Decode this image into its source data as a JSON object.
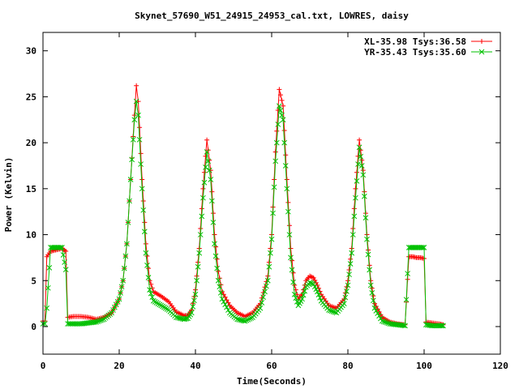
{
  "chart_data": {
    "type": "line",
    "title": "Skynet_57690_W51_24915_24953_cal.txt, LOWRES, daisy",
    "xlabel": "Time(Seconds)",
    "ylabel": "Power (Kelvin)",
    "xlim": [
      0,
      120
    ],
    "ylim": [
      -3,
      32
    ],
    "xticks": [
      0,
      20,
      40,
      60,
      80,
      100,
      120
    ],
    "yticks": [
      0,
      5,
      10,
      15,
      20,
      25,
      30
    ],
    "grid": false,
    "legend_position": "top-right",
    "series": [
      {
        "name": "XL-35.98 Tsys:36.58",
        "color": "#ff0000",
        "marker": "plus",
        "points": [
          [
            0,
            0.6
          ],
          [
            0.5,
            0.6
          ],
          [
            1,
            7.6
          ],
          [
            2,
            8.2
          ],
          [
            3,
            8.3
          ],
          [
            4,
            8.4
          ],
          [
            5,
            8.5
          ],
          [
            6,
            8.2
          ],
          [
            6.5,
            1.0
          ],
          [
            8,
            1.1
          ],
          [
            10,
            1.1
          ],
          [
            12,
            1.0
          ],
          [
            14,
            0.8
          ],
          [
            16,
            1.0
          ],
          [
            18,
            1.5
          ],
          [
            20,
            3.0
          ],
          [
            21,
            5.0
          ],
          [
            22,
            9.0
          ],
          [
            23,
            16.0
          ],
          [
            24,
            23.0
          ],
          [
            24.5,
            26.2
          ],
          [
            25,
            24.5
          ],
          [
            26,
            16.0
          ],
          [
            27,
            9.0
          ],
          [
            28,
            5.0
          ],
          [
            29,
            3.8
          ],
          [
            31,
            3.3
          ],
          [
            33,
            2.7
          ],
          [
            35,
            1.6
          ],
          [
            37,
            1.2
          ],
          [
            38,
            1.2
          ],
          [
            39,
            1.8
          ],
          [
            40,
            4.0
          ],
          [
            41,
            8.5
          ],
          [
            42,
            15.0
          ],
          [
            43,
            20.3
          ],
          [
            44,
            17.0
          ],
          [
            45,
            10.0
          ],
          [
            46,
            6.0
          ],
          [
            47,
            3.8
          ],
          [
            49,
            2.3
          ],
          [
            51,
            1.5
          ],
          [
            53,
            1.1
          ],
          [
            55,
            1.5
          ],
          [
            57,
            2.5
          ],
          [
            59,
            5.5
          ],
          [
            60,
            10.0
          ],
          [
            61,
            19.0
          ],
          [
            62,
            25.8
          ],
          [
            63,
            24.0
          ],
          [
            64,
            16.0
          ],
          [
            65,
            8.5
          ],
          [
            66,
            4.5
          ],
          [
            67,
            3.0
          ],
          [
            68,
            3.5
          ],
          [
            69,
            5.0
          ],
          [
            70,
            5.5
          ],
          [
            71,
            5.3
          ],
          [
            72,
            4.5
          ],
          [
            73,
            3.5
          ],
          [
            75,
            2.3
          ],
          [
            77,
            2.0
          ],
          [
            79,
            3.0
          ],
          [
            80,
            5.0
          ],
          [
            81,
            8.5
          ],
          [
            82,
            15.0
          ],
          [
            83,
            20.3
          ],
          [
            84,
            17.0
          ],
          [
            85,
            10.0
          ],
          [
            86,
            5.0
          ],
          [
            87,
            2.5
          ],
          [
            89,
            1.0
          ],
          [
            91,
            0.5
          ],
          [
            93,
            0.3
          ],
          [
            95,
            0.2
          ],
          [
            96,
            7.6
          ],
          [
            97,
            7.6
          ],
          [
            98,
            7.5
          ],
          [
            99,
            7.5
          ],
          [
            100,
            7.4
          ],
          [
            100.5,
            0.5
          ],
          [
            102,
            0.4
          ],
          [
            104,
            0.3
          ],
          [
            105,
            0.2
          ]
        ]
      },
      {
        "name": "YR-35.43 Tsys:35.60",
        "color": "#00c000",
        "marker": "cross",
        "points": [
          [
            0,
            0.3
          ],
          [
            0.5,
            0.3
          ],
          [
            1,
            2.0
          ],
          [
            2,
            8.6
          ],
          [
            3,
            8.6
          ],
          [
            4,
            8.6
          ],
          [
            5,
            8.6
          ],
          [
            6,
            6.2
          ],
          [
            6.5,
            0.3
          ],
          [
            8,
            0.3
          ],
          [
            10,
            0.3
          ],
          [
            12,
            0.4
          ],
          [
            14,
            0.5
          ],
          [
            16,
            0.8
          ],
          [
            18,
            1.5
          ],
          [
            20,
            3.0
          ],
          [
            21,
            5.0
          ],
          [
            22,
            9.0
          ],
          [
            23,
            16.0
          ],
          [
            24,
            22.5
          ],
          [
            24.5,
            24.5
          ],
          [
            25,
            23.0
          ],
          [
            26,
            15.0
          ],
          [
            27,
            8.0
          ],
          [
            28,
            4.0
          ],
          [
            29,
            2.8
          ],
          [
            31,
            2.3
          ],
          [
            33,
            1.8
          ],
          [
            35,
            1.0
          ],
          [
            37,
            0.8
          ],
          [
            38,
            0.9
          ],
          [
            39,
            1.5
          ],
          [
            40,
            3.5
          ],
          [
            41,
            8.0
          ],
          [
            42,
            14.0
          ],
          [
            43,
            19.0
          ],
          [
            44,
            16.0
          ],
          [
            45,
            9.0
          ],
          [
            46,
            5.0
          ],
          [
            47,
            3.0
          ],
          [
            49,
            1.5
          ],
          [
            51,
            0.8
          ],
          [
            53,
            0.6
          ],
          [
            55,
            1.0
          ],
          [
            57,
            2.0
          ],
          [
            59,
            5.0
          ],
          [
            60,
            9.5
          ],
          [
            61,
            18.0
          ],
          [
            62,
            24.0
          ],
          [
            63,
            22.5
          ],
          [
            64,
            15.0
          ],
          [
            65,
            7.5
          ],
          [
            66,
            3.5
          ],
          [
            67,
            2.3
          ],
          [
            68,
            3.0
          ],
          [
            69,
            4.3
          ],
          [
            70,
            4.8
          ],
          [
            71,
            4.6
          ],
          [
            72,
            3.8
          ],
          [
            73,
            2.8
          ],
          [
            75,
            1.8
          ],
          [
            77,
            1.5
          ],
          [
            79,
            2.5
          ],
          [
            80,
            4.5
          ],
          [
            81,
            8.0
          ],
          [
            82,
            14.0
          ],
          [
            83,
            19.5
          ],
          [
            84,
            16.5
          ],
          [
            85,
            9.5
          ],
          [
            86,
            4.5
          ],
          [
            87,
            2.0
          ],
          [
            89,
            0.6
          ],
          [
            91,
            0.3
          ],
          [
            93,
            0.2
          ],
          [
            95,
            0.1
          ],
          [
            96,
            8.6
          ],
          [
            97,
            8.6
          ],
          [
            98,
            8.6
          ],
          [
            99,
            8.6
          ],
          [
            100,
            8.6
          ],
          [
            100.5,
            0.2
          ],
          [
            102,
            0.1
          ],
          [
            104,
            0.1
          ],
          [
            105,
            0.1
          ]
        ]
      }
    ]
  }
}
